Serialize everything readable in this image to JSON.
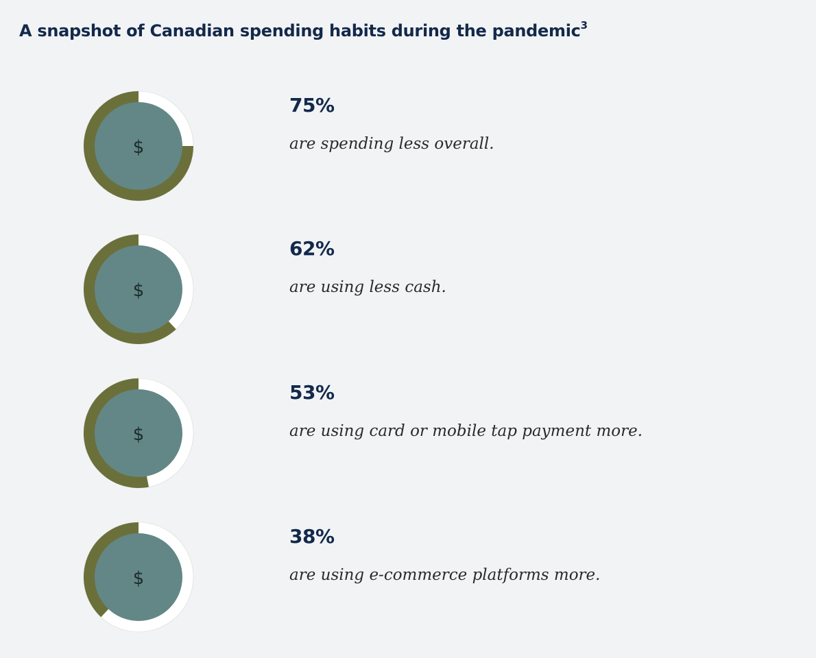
{
  "title": "A snapshot of Canadian spending habits during the pandemic",
  "title_superscript": "3",
  "colors": {
    "arc_fill": "#6b703b",
    "arc_remainder": "#ffffff",
    "center": "#628786",
    "title": "#13294b"
  },
  "center_symbol": "$",
  "chart_data": {
    "type": "pie",
    "title": "A snapshot of Canadian spending habits during the pandemic",
    "series": [
      {
        "name": "are spending less overall.",
        "label": "75%",
        "value": 75
      },
      {
        "name": "are using less cash.",
        "label": "62%",
        "value": 62
      },
      {
        "name": "are using card or mobile tap payment more.",
        "label": "53%",
        "value": 53
      },
      {
        "name": "are using e-commerce platforms more.",
        "label": "38%",
        "value": 38
      }
    ]
  }
}
